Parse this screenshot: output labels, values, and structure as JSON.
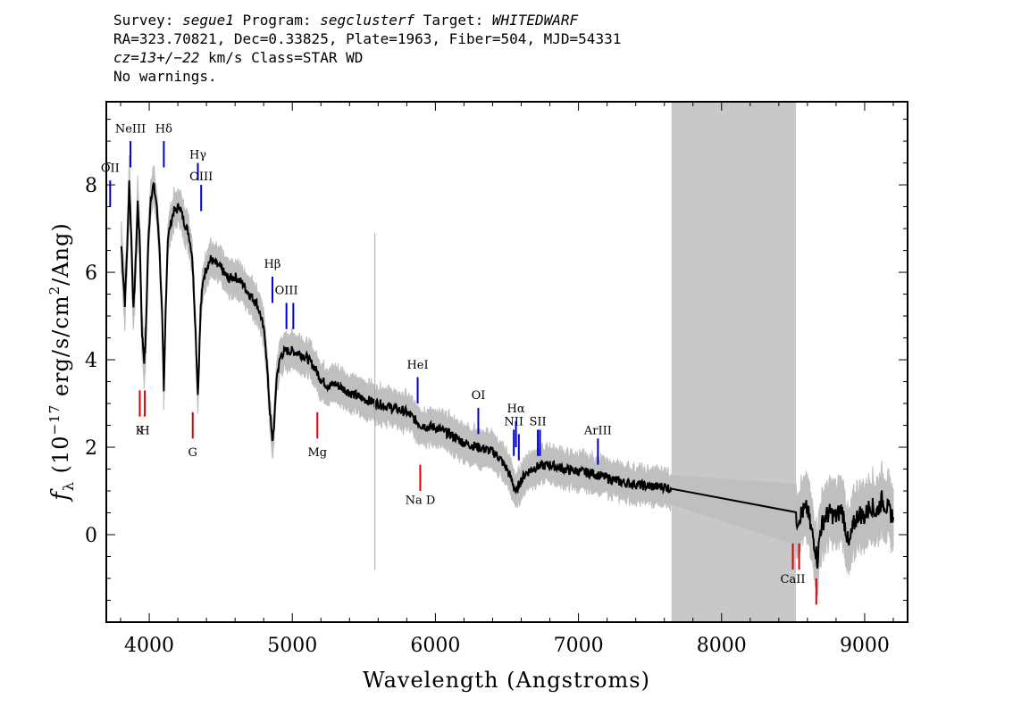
{
  "header": {
    "line1": {
      "survey_label": "Survey: ",
      "survey": "segue1",
      "program_label": " Program: ",
      "program": "segclusterf",
      "target_label": " Target: ",
      "target": "WHITEDWARF"
    },
    "line2": "RA=323.70821, Dec=0.33825, Plate=1963, Fiber=504, MJD=54331",
    "line3": {
      "cz": "cz=13+/−22",
      "rest": " km/s Class=STAR WD"
    },
    "line4": "No warnings."
  },
  "chart_data": {
    "type": "line",
    "xlabel": "Wavelength (Angstroms)",
    "ylabel_prefix": "f",
    "ylabel_sub": "λ",
    "ylabel_rest": " (10",
    "ylabel_exp": "−17",
    "ylabel_mid": " erg/s/cm",
    "ylabel_exp2": "2",
    "ylabel_end": "/Ang)",
    "xlim": [
      3700,
      9300
    ],
    "ylim": [
      -2,
      9.9
    ],
    "xticks": [
      4000,
      5000,
      6000,
      7000,
      8000,
      9000
    ],
    "yticks": [
      0,
      2,
      4,
      6,
      8
    ],
    "masked_region": [
      7650,
      8520
    ],
    "colors": {
      "flux": "#000000",
      "error": "#bfbfbf",
      "mask": "#c8c8c8",
      "emission": "#0000cc",
      "absorption": "#dd0000"
    },
    "series": [
      {
        "values": [
          [
            3805,
            6.6
          ],
          [
            3830,
            5.3
          ],
          [
            3850,
            6.9
          ],
          [
            3860,
            8.1
          ],
          [
            3875,
            6.8
          ],
          [
            3890,
            5.1
          ],
          [
            3905,
            6.2
          ],
          [
            3920,
            7.6
          ],
          [
            3935,
            6.6
          ],
          [
            3950,
            4.6
          ],
          [
            3965,
            4.0
          ],
          [
            3975,
            4.4
          ],
          [
            3990,
            6.4
          ],
          [
            4010,
            7.7
          ],
          [
            4030,
            8.0
          ],
          [
            4050,
            7.6
          ],
          [
            4070,
            6.7
          ],
          [
            4090,
            5.0
          ],
          [
            4102,
            3.2
          ],
          [
            4115,
            5.2
          ],
          [
            4130,
            6.8
          ],
          [
            4150,
            7.1
          ],
          [
            4170,
            7.4
          ],
          [
            4190,
            7.4
          ],
          [
            4210,
            7.55
          ],
          [
            4230,
            7.3
          ],
          [
            4250,
            7.1
          ],
          [
            4275,
            6.9
          ],
          [
            4300,
            6.4
          ],
          [
            4320,
            5.0
          ],
          [
            4340,
            3.2
          ],
          [
            4360,
            5.2
          ],
          [
            4380,
            5.9
          ],
          [
            4400,
            6.1
          ],
          [
            4430,
            6.3
          ],
          [
            4460,
            6.2
          ],
          [
            4500,
            6.1
          ],
          [
            4550,
            5.85
          ],
          [
            4600,
            5.9
          ],
          [
            4650,
            5.75
          ],
          [
            4700,
            5.5
          ],
          [
            4750,
            5.3
          ],
          [
            4780,
            5.0
          ],
          [
            4810,
            4.5
          ],
          [
            4840,
            3.0
          ],
          [
            4860,
            2.1
          ],
          [
            4875,
            2.6
          ],
          [
            4890,
            3.6
          ],
          [
            4920,
            4.1
          ],
          [
            4950,
            4.2
          ],
          [
            5000,
            4.2
          ],
          [
            5050,
            4.15
          ],
          [
            5100,
            4.05
          ],
          [
            5150,
            3.85
          ],
          [
            5200,
            3.55
          ],
          [
            5250,
            3.4
          ],
          [
            5300,
            3.45
          ],
          [
            5400,
            3.25
          ],
          [
            5500,
            3.1
          ],
          [
            5600,
            3.0
          ],
          [
            5700,
            2.9
          ],
          [
            5800,
            2.8
          ],
          [
            5900,
            2.5
          ],
          [
            6000,
            2.45
          ],
          [
            6100,
            2.3
          ],
          [
            6200,
            2.1
          ],
          [
            6300,
            2.0
          ],
          [
            6400,
            1.9
          ],
          [
            6450,
            1.75
          ],
          [
            6500,
            1.5
          ],
          [
            6540,
            1.2
          ],
          [
            6563,
            0.95
          ],
          [
            6590,
            1.2
          ],
          [
            6630,
            1.4
          ],
          [
            6700,
            1.55
          ],
          [
            6800,
            1.6
          ],
          [
            6900,
            1.5
          ],
          [
            7000,
            1.45
          ],
          [
            7100,
            1.4
          ],
          [
            7200,
            1.3
          ],
          [
            7300,
            1.2
          ],
          [
            7400,
            1.15
          ],
          [
            7500,
            1.1
          ],
          [
            7600,
            1.1
          ],
          [
            7650,
            1.05
          ],
          [
            8520,
            0.3
          ],
          [
            8560,
            0.5
          ],
          [
            8600,
            0.6
          ],
          [
            8620,
            0.2
          ],
          [
            8650,
            -0.2
          ],
          [
            8670,
            -0.6
          ],
          [
            8690,
            0.1
          ],
          [
            8720,
            0.4
          ],
          [
            8760,
            0.5
          ],
          [
            8800,
            0.4
          ],
          [
            8840,
            0.6
          ],
          [
            8870,
            0.1
          ],
          [
            8890,
            -0.3
          ],
          [
            8920,
            0.2
          ],
          [
            8960,
            0.5
          ],
          [
            9000,
            0.4
          ],
          [
            9040,
            0.7
          ],
          [
            9080,
            0.5
          ],
          [
            9120,
            0.8
          ],
          [
            9160,
            0.6
          ],
          [
            9200,
            0.4
          ]
        ]
      }
    ],
    "emission_lines": [
      {
        "label": "OII",
        "x": 3727,
        "label_y": 8.3,
        "y_top": 8.1,
        "y_bot": 7.5
      },
      {
        "label": "NeIII",
        "x": 3869,
        "label_y": 9.2,
        "y_top": 9.0,
        "y_bot": 8.4
      },
      {
        "label": "Hδ",
        "x": 4102,
        "label_y": 9.2,
        "y_top": 9.0,
        "y_bot": 8.4
      },
      {
        "label": "Hγ",
        "x": 4340,
        "label_y": 8.6,
        "y_top": 8.5,
        "y_bot": 8.1
      },
      {
        "label": "OIII",
        "x": 4363,
        "label_y": 8.1,
        "y_top": 8.0,
        "y_bot": 7.4
      },
      {
        "label": "Hβ",
        "x": 4861,
        "label_y": 6.1,
        "y_top": 5.9,
        "y_bot": 5.3
      },
      {
        "label": "OIII",
        "x": 4959,
        "label_y": 5.5,
        "y_top": 5.3,
        "y_bot": 4.7
      },
      {
        "label": "",
        "x": 5007,
        "label_y": 5.5,
        "y_top": 5.3,
        "y_bot": 4.7
      },
      {
        "label": "HeI",
        "x": 5876,
        "label_y": 3.8,
        "y_top": 3.6,
        "y_bot": 3.0
      },
      {
        "label": "OI",
        "x": 6300,
        "label_y": 3.1,
        "y_top": 2.9,
        "y_bot": 2.3
      },
      {
        "label": "NII",
        "x": 6548,
        "label_y": 2.5,
        "y_top": 2.4,
        "y_bot": 1.8
      },
      {
        "label": "Hα",
        "x": 6563,
        "label_y": 2.8,
        "y_top": 2.6,
        "y_bot": 2.0
      },
      {
        "label": "",
        "x": 6583,
        "label_y": 2.5,
        "y_top": 2.3,
        "y_bot": 1.7
      },
      {
        "label": "SII",
        "x": 6716,
        "label_y": 2.5,
        "y_top": 2.4,
        "y_bot": 1.8
      },
      {
        "label": "",
        "x": 6731,
        "label_y": 2.5,
        "y_top": 2.4,
        "y_bot": 1.8
      },
      {
        "label": "ArIII",
        "x": 7136,
        "label_y": 2.3,
        "y_top": 2.2,
        "y_bot": 1.6
      },
      {
        "label": "",
        "x": 5577,
        "label_y": 0,
        "y_top": 6.9,
        "y_bot": -0.8
      }
    ],
    "absorption_lines": [
      {
        "label": "K",
        "x": 3934,
        "label_y": 2.3,
        "y_top": 3.3,
        "y_bot": 2.7
      },
      {
        "label": "H",
        "x": 3969,
        "label_y": 2.3,
        "y_top": 3.3,
        "y_bot": 2.7
      },
      {
        "label": "G",
        "x": 4304,
        "label_y": 1.8,
        "y_top": 2.8,
        "y_bot": 2.2
      },
      {
        "label": "Mg",
        "x": 5175,
        "label_y": 1.8,
        "y_top": 2.8,
        "y_bot": 2.2
      },
      {
        "label": "Na D",
        "x": 5894,
        "label_y": 0.7,
        "y_top": 1.6,
        "y_bot": 1.0
      },
      {
        "label": "CaII",
        "x": 8498,
        "label_y": -1.1,
        "y_top": -0.2,
        "y_bot": -0.8
      },
      {
        "label": "",
        "x": 8542,
        "label_y": -1.1,
        "y_top": -0.2,
        "y_bot": -0.8
      },
      {
        "label": "",
        "x": 8662,
        "label_y": -1.1,
        "y_top": -1.0,
        "y_bot": -1.6
      }
    ]
  }
}
